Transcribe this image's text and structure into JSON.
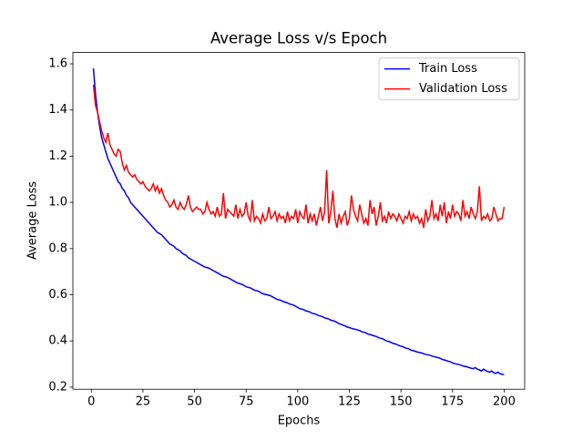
{
  "chart_data": {
    "type": "line",
    "title": "Average Loss v/s Epoch",
    "x_label": "Epochs",
    "y_label": "Average Loss",
    "legend": "upper right",
    "xlim": [
      -8.95,
      209.95
    ],
    "xticks": [
      0,
      25,
      50,
      75,
      100,
      125,
      150,
      175,
      200
    ],
    "ylim": [
      0.191,
      1.649
    ],
    "yticks": [
      0.2,
      0.4,
      0.6,
      0.8,
      {
        "value": 1,
        "label": "1.0"
      },
      1.2,
      1.4,
      1.6
    ],
    "x": [
      1,
      2,
      3,
      4,
      5,
      6,
      7,
      8,
      9,
      10,
      11,
      12,
      13,
      14,
      15,
      16,
      17,
      18,
      19,
      20,
      21,
      22,
      23,
      24,
      25,
      26,
      27,
      28,
      29,
      30,
      31,
      32,
      33,
      34,
      35,
      36,
      37,
      38,
      39,
      40,
      41,
      42,
      43,
      44,
      45,
      46,
      47,
      48,
      49,
      50,
      51,
      52,
      53,
      54,
      55,
      56,
      57,
      58,
      59,
      60,
      61,
      62,
      63,
      64,
      65,
      66,
      67,
      68,
      69,
      70,
      71,
      72,
      73,
      74,
      75,
      76,
      77,
      78,
      79,
      80,
      81,
      82,
      83,
      84,
      85,
      86,
      87,
      88,
      89,
      90,
      91,
      92,
      93,
      94,
      95,
      96,
      97,
      98,
      99,
      100,
      101,
      102,
      103,
      104,
      105,
      106,
      107,
      108,
      109,
      110,
      111,
      112,
      113,
      114,
      115,
      116,
      117,
      118,
      119,
      120,
      121,
      122,
      123,
      124,
      125,
      126,
      127,
      128,
      129,
      130,
      131,
      132,
      133,
      134,
      135,
      136,
      137,
      138,
      139,
      140,
      141,
      142,
      143,
      144,
      145,
      146,
      147,
      148,
      149,
      150,
      151,
      152,
      153,
      154,
      155,
      156,
      157,
      158,
      159,
      160,
      161,
      162,
      163,
      164,
      165,
      166,
      167,
      168,
      169,
      170,
      171,
      172,
      173,
      174,
      175,
      176,
      177,
      178,
      179,
      180,
      181,
      182,
      183,
      184,
      185,
      186,
      187,
      188,
      189,
      190,
      191,
      192,
      193,
      194,
      195,
      196,
      197,
      198,
      199,
      200
    ],
    "series": [
      {
        "name": "Train Loss",
        "color": "#0000ff",
        "values": [
          1.58,
          1.47,
          1.39,
          1.33,
          1.28,
          1.25,
          1.22,
          1.19,
          1.17,
          1.15,
          1.13,
          1.11,
          1.09,
          1.08,
          1.06,
          1.05,
          1.03,
          1.02,
          1.0,
          0.99,
          0.98,
          0.97,
          0.96,
          0.95,
          0.94,
          0.93,
          0.92,
          0.91,
          0.9,
          0.89,
          0.88,
          0.87,
          0.865,
          0.86,
          0.85,
          0.84,
          0.83,
          0.82,
          0.815,
          0.81,
          0.8,
          0.795,
          0.79,
          0.78,
          0.775,
          0.77,
          0.76,
          0.755,
          0.75,
          0.745,
          0.74,
          0.735,
          0.73,
          0.725,
          0.72,
          0.718,
          0.715,
          0.71,
          0.705,
          0.7,
          0.695,
          0.69,
          0.685,
          0.68,
          0.678,
          0.675,
          0.67,
          0.665,
          0.66,
          0.655,
          0.65,
          0.648,
          0.645,
          0.64,
          0.635,
          0.632,
          0.63,
          0.625,
          0.62,
          0.618,
          0.615,
          0.61,
          0.605,
          0.602,
          0.6,
          0.598,
          0.595,
          0.59,
          0.585,
          0.58,
          0.578,
          0.575,
          0.57,
          0.568,
          0.565,
          0.56,
          0.558,
          0.555,
          0.55,
          0.545,
          0.54,
          0.538,
          0.535,
          0.53,
          0.528,
          0.525,
          0.52,
          0.518,
          0.515,
          0.51,
          0.508,
          0.505,
          0.5,
          0.498,
          0.495,
          0.49,
          0.488,
          0.485,
          0.48,
          0.475,
          0.472,
          0.468,
          0.465,
          0.46,
          0.458,
          0.455,
          0.452,
          0.45,
          0.448,
          0.445,
          0.44,
          0.438,
          0.435,
          0.43,
          0.428,
          0.425,
          0.422,
          0.42,
          0.415,
          0.412,
          0.41,
          0.405,
          0.4,
          0.398,
          0.395,
          0.39,
          0.388,
          0.385,
          0.38,
          0.378,
          0.375,
          0.37,
          0.368,
          0.365,
          0.36,
          0.358,
          0.355,
          0.352,
          0.35,
          0.348,
          0.345,
          0.342,
          0.34,
          0.338,
          0.335,
          0.332,
          0.33,
          0.328,
          0.325,
          0.32,
          0.318,
          0.315,
          0.312,
          0.31,
          0.305,
          0.302,
          0.3,
          0.298,
          0.295,
          0.292,
          0.29,
          0.288,
          0.285,
          0.282,
          0.28,
          0.285,
          0.278,
          0.275,
          0.27,
          0.278,
          0.272,
          0.268,
          0.265,
          0.27,
          0.262,
          0.26,
          0.265,
          0.258,
          0.256,
          0.255
        ]
      },
      {
        "name": "Validation Loss",
        "color": "#ff0000",
        "values": [
          1.51,
          1.42,
          1.39,
          1.35,
          1.31,
          1.28,
          1.26,
          1.3,
          1.25,
          1.23,
          1.21,
          1.2,
          1.23,
          1.22,
          1.17,
          1.14,
          1.16,
          1.13,
          1.12,
          1.11,
          1.12,
          1.1,
          1.09,
          1.08,
          1.09,
          1.07,
          1.06,
          1.05,
          1.06,
          1.08,
          1.05,
          1.07,
          1.04,
          1.06,
          1.03,
          1.01,
          1.0,
          0.98,
          0.99,
          1.01,
          0.98,
          0.97,
          1.0,
          0.98,
          0.97,
          0.99,
          1.03,
          0.98,
          0.96,
          0.97,
          0.98,
          0.97,
          0.97,
          0.95,
          0.96,
          1.0,
          0.97,
          0.95,
          0.96,
          0.94,
          0.98,
          0.94,
          0.95,
          1.04,
          0.93,
          0.97,
          0.96,
          0.95,
          0.94,
          0.99,
          0.93,
          0.97,
          0.94,
          0.95,
          1.0,
          0.94,
          0.92,
          1.01,
          0.92,
          0.94,
          0.93,
          0.91,
          0.95,
          0.92,
          0.93,
          0.98,
          0.93,
          0.94,
          0.96,
          0.92,
          0.95,
          0.93,
          0.94,
          0.91,
          0.96,
          0.92,
          0.94,
          0.93,
          0.97,
          0.91,
          0.96,
          0.94,
          0.93,
          0.99,
          0.91,
          0.95,
          0.92,
          0.95,
          0.9,
          0.94,
          0.98,
          0.92,
          0.96,
          1.14,
          0.91,
          0.96,
          1.05,
          0.93,
          0.89,
          0.95,
          0.91,
          0.94,
          0.96,
          0.9,
          0.93,
          1.03,
          0.97,
          0.94,
          0.92,
          0.99,
          0.95,
          0.91,
          0.93,
          0.9,
          1.01,
          0.95,
          0.98,
          0.9,
          0.94,
          1.0,
          0.92,
          0.94,
          0.91,
          0.96,
          0.93,
          0.95,
          0.94,
          0.92,
          0.95,
          0.93,
          0.91,
          0.94,
          0.93,
          0.96,
          0.92,
          0.95,
          0.93,
          0.94,
          0.91,
          0.93,
          0.89,
          0.97,
          0.92,
          0.94,
          1.01,
          0.93,
          0.95,
          0.92,
          0.99,
          0.94,
          1.0,
          0.91,
          0.96,
          0.93,
          0.99,
          0.94,
          0.96,
          0.95,
          0.92,
          1.01,
          0.94,
          0.96,
          0.93,
          0.98,
          0.95,
          0.93,
          0.96,
          1.07,
          0.92,
          0.94,
          0.93,
          0.95,
          0.92,
          0.93,
          0.98,
          0.95,
          0.92,
          0.93,
          0.93,
          0.98
        ]
      }
    ]
  }
}
